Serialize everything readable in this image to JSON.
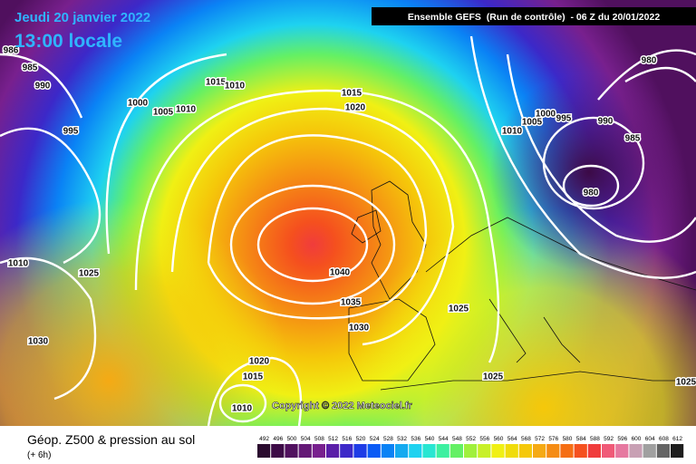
{
  "header": {
    "date": "Jeudi 20 janvier 2022",
    "time": "13:00 locale",
    "run": "Ensemble GEFS  (Run de contrôle)  - 06 Z du 20/01/2022"
  },
  "isobar_labels": [
    "986",
    "985",
    "990",
    "995",
    "1000",
    "1005",
    "1010",
    "1015",
    "1010",
    "1015",
    "1020",
    "1010",
    "1005",
    "1000",
    "995",
    "990",
    "985",
    "980",
    "980",
    "1010",
    "1025",
    "1040",
    "1035",
    "1030",
    "1025",
    "1030",
    "1020",
    "1015",
    "1010",
    "1025",
    "1025"
  ],
  "copyright": "Copyright © 2022 Meteociel.fr",
  "footer": {
    "title": "Géop. Z500 & pression au sol",
    "lead": "(+ 6h)"
  },
  "scale": {
    "labels": [
      492,
      496,
      500,
      504,
      508,
      512,
      516,
      520,
      524,
      528,
      532,
      536,
      540,
      544,
      548,
      552,
      556,
      560,
      564,
      568,
      572,
      576,
      580,
      584,
      588,
      592,
      596,
      600,
      604,
      608,
      612
    ],
    "colors": [
      "#2a0a2e",
      "#3c0a46",
      "#50105e",
      "#641876",
      "#78208e",
      "#5a1ea8",
      "#3c28c8",
      "#1e3ce6",
      "#0a5af5",
      "#0a82f5",
      "#14aaf0",
      "#1ed2f0",
      "#28e6d2",
      "#3cf0a0",
      "#64f064",
      "#a0f03c",
      "#c8f028",
      "#f0f014",
      "#f0dc0a",
      "#f5c80a",
      "#f5aa14",
      "#f58c14",
      "#f56e14",
      "#f5501e",
      "#f03c3c",
      "#f05a78",
      "#e678a0",
      "#c8a0b4",
      "#a0a0a0",
      "#646464",
      "#1e1e1e"
    ]
  }
}
